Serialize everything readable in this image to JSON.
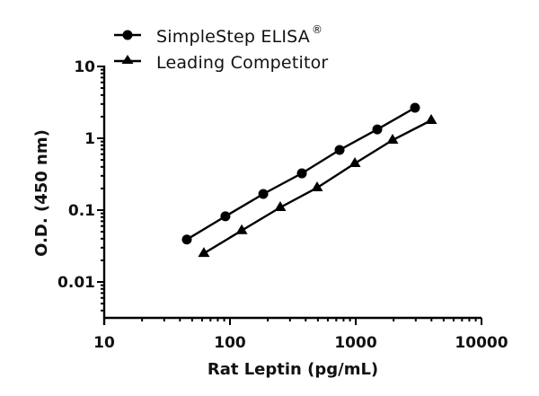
{
  "chart_data": {
    "type": "line",
    "title": "",
    "xlabel": "Rat Leptin (pg/mL)",
    "ylabel": "O.D. (450 nm)",
    "xscale": "log",
    "yscale": "log",
    "xlim": [
      10,
      10000
    ],
    "ylim": [
      0.0033,
      10
    ],
    "x_ticks": [
      10,
      100,
      1000,
      10000
    ],
    "x_tick_labels": [
      "10",
      "100",
      "1000",
      "10000"
    ],
    "y_ticks": [
      0.01,
      0.1,
      1,
      10
    ],
    "y_tick_labels": [
      "0.01",
      "0.1",
      "1",
      "10"
    ],
    "grid": false,
    "legend_position": "top-left, above plot",
    "series": [
      {
        "name": "SimpleStep ELISA®",
        "marker": "circle",
        "color": "#000000",
        "x": [
          45.4,
          92,
          184,
          373,
          744,
          1484,
          2960
        ],
        "y": [
          0.039,
          0.082,
          0.168,
          0.325,
          0.688,
          1.33,
          2.66
        ]
      },
      {
        "name": "Leading Competitor",
        "marker": "triangle",
        "color": "#000000",
        "x": [
          62,
          124,
          251,
          493,
          984,
          1963,
          3981
        ],
        "y": [
          0.025,
          0.052,
          0.109,
          0.205,
          0.447,
          0.944,
          1.78
        ]
      }
    ]
  },
  "legend": {
    "items": [
      {
        "label": "SimpleStep ELISA",
        "superscript": "®",
        "marker": "circle"
      },
      {
        "label": "Leading Competitor",
        "superscript": "",
        "marker": "triangle"
      }
    ]
  }
}
